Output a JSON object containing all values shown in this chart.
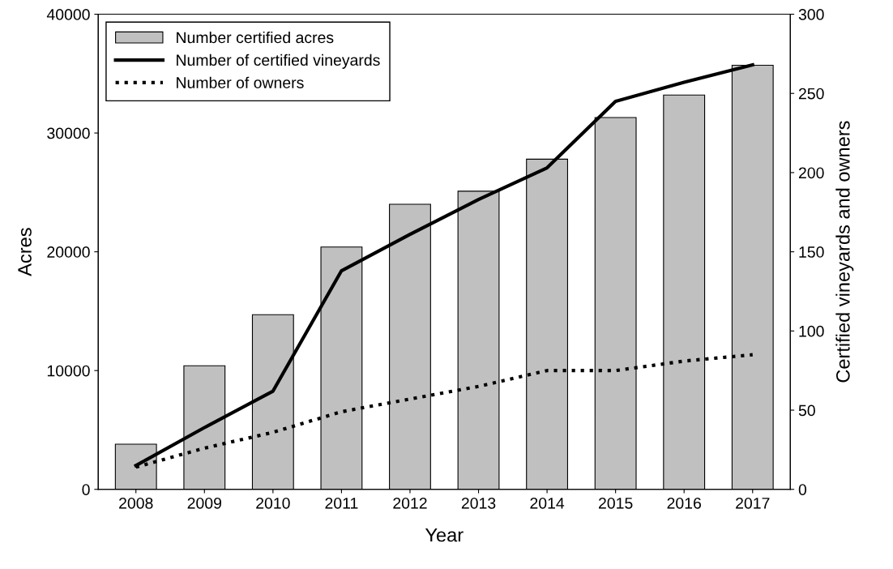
{
  "chart_data": {
    "type": "bar",
    "xlabel": "Year",
    "ylabel": "Acres",
    "y2label": "Certified vineyards and owners",
    "categories": [
      "2008",
      "2009",
      "2010",
      "2011",
      "2012",
      "2013",
      "2014",
      "2015",
      "2016",
      "2017"
    ],
    "series": [
      {
        "name": "Number certified acres",
        "color": "#c0c0c0",
        "values": [
          3800,
          10400,
          14700,
          20400,
          24000,
          25100,
          27800,
          31300,
          33200,
          35700
        ]
      },
      {
        "name": "Number of certified vineyards",
        "type": "line",
        "axis": "y2",
        "color": "#000000",
        "line_style": "solid",
        "values": [
          15,
          39,
          62,
          138,
          161,
          183,
          203,
          245,
          257,
          268
        ]
      },
      {
        "name": "Number of owners",
        "type": "line",
        "axis": "y2",
        "color": "#000000",
        "line_style": "dotted",
        "values": [
          14,
          26,
          36,
          49,
          57,
          65,
          75,
          75,
          81,
          85
        ]
      }
    ],
    "ylim": [
      0,
      40000
    ],
    "yticks": [
      0,
      10000,
      20000,
      30000,
      40000
    ],
    "y2lim": [
      0,
      300
    ],
    "y2ticks": [
      0,
      50,
      100,
      150,
      200,
      250,
      300
    ],
    "grid": false,
    "legend": "top left",
    "marker": "none"
  }
}
